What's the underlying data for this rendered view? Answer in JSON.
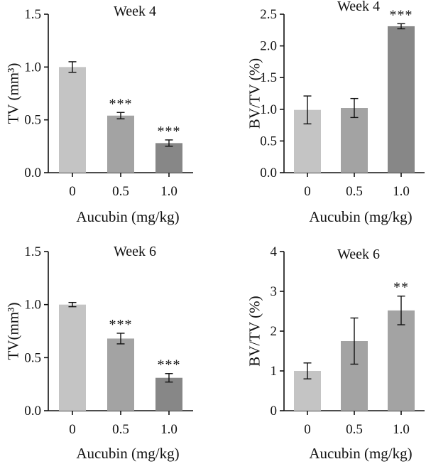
{
  "chart_data": [
    {
      "type": "bar",
      "title": "Week 4",
      "ylabel": "TV (mm³)",
      "xlabel": "Aucubin (mg/kg)",
      "categories": [
        "0",
        "0.5",
        "1.0"
      ],
      "values": [
        1.0,
        0.54,
        0.28
      ],
      "errors": [
        0.05,
        0.03,
        0.03
      ],
      "significance": [
        "",
        "***",
        "***"
      ],
      "ylim": [
        0,
        1.5
      ],
      "yticks": [
        "0.0",
        "0.5",
        "1.0",
        "1.5"
      ],
      "bar_colors": [
        "#c4c4c4",
        "#a3a3a3",
        "#878787"
      ]
    },
    {
      "type": "bar",
      "title": "Week 4",
      "ylabel": "BV/TV (%)",
      "xlabel": "Aucubin (mg/kg)",
      "categories": [
        "0",
        "0.5",
        "1.0"
      ],
      "values": [
        0.99,
        1.02,
        2.31
      ],
      "errors": [
        0.22,
        0.15,
        0.04
      ],
      "significance": [
        "",
        "",
        "***"
      ],
      "ylim": [
        0,
        2.5
      ],
      "yticks": [
        "0.0",
        "0.5",
        "1.0",
        "1.5",
        "2.0",
        "2.5"
      ],
      "bar_colors": [
        "#c4c4c4",
        "#a3a3a3",
        "#878787"
      ]
    },
    {
      "type": "bar",
      "title": "Week 6",
      "ylabel": "TV(mm³)",
      "xlabel": "Aucubin (mg/kg)",
      "categories": [
        "0",
        "0.5",
        "1.0"
      ],
      "values": [
        1.0,
        0.68,
        0.31
      ],
      "errors": [
        0.02,
        0.05,
        0.04
      ],
      "significance": [
        "",
        "***",
        "***"
      ],
      "ylim": [
        0,
        1.5
      ],
      "yticks": [
        "0.0",
        "0.5",
        "1.0",
        "1.5"
      ],
      "bar_colors": [
        "#c4c4c4",
        "#a3a3a3",
        "#878787"
      ]
    },
    {
      "type": "bar",
      "title": "Week 6",
      "ylabel": "BV/TV (%)",
      "xlabel": "Aucubin (mg/kg)",
      "categories": [
        "0",
        "0.5",
        "1.0"
      ],
      "values": [
        1.0,
        1.75,
        2.52
      ],
      "errors": [
        0.2,
        0.58,
        0.36
      ],
      "significance": [
        "",
        "",
        "**"
      ],
      "ylim": [
        0,
        4
      ],
      "yticks": [
        "0",
        "1",
        "2",
        "3",
        "4"
      ],
      "bar_colors": [
        "#c4c4c4",
        "#a3a3a3",
        "#a3a3a3"
      ]
    }
  ]
}
